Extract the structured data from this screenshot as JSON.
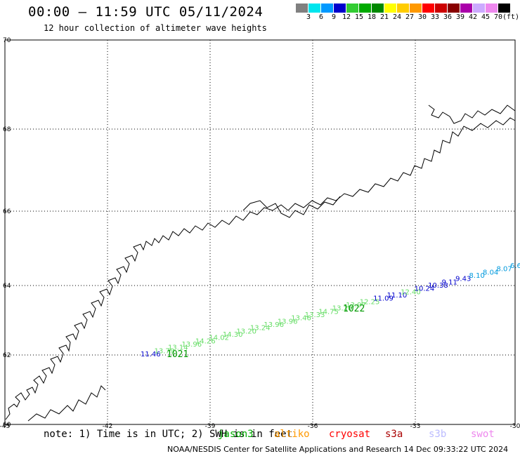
{
  "header": {
    "title": "00:00 – 11:59 UTC 05/11/2024",
    "subtitle": "12 hour collection of altimeter wave heights"
  },
  "colorbar": {
    "colors": [
      "#808080",
      "#00e5ee",
      "#0099ff",
      "#0000cc",
      "#33cc33",
      "#00aa00",
      "#008800",
      "#ffff00",
      "#ffcc00",
      "#ff9900",
      "#ff0000",
      "#cc0000",
      "#880000",
      "#aa00aa",
      "#ccaaff",
      "#ee88ee",
      "#000000"
    ],
    "labels": [
      "3",
      "6",
      "9",
      "12",
      "15",
      "18",
      "21",
      "24",
      "27",
      "30",
      "33",
      "36",
      "39",
      "42",
      "45",
      "70",
      "(ft)"
    ]
  },
  "map": {
    "lon_labels": [
      "-45",
      "-42",
      "-39",
      "-36",
      "-33",
      "-30"
    ],
    "lat_labels": [
      "70",
      "68",
      "66",
      "64",
      "62",
      "60"
    ],
    "track_colors": {
      "jason3": "#33cc33",
      "jason3_dark": "#009900",
      "blue": "#0000cc",
      "cyan": "#0099dd"
    },
    "track_values": [
      {
        "v": "11.46",
        "c": "#0000cc"
      },
      {
        "v": "13.79",
        "c": "#66dd66"
      },
      {
        "v": "13.14",
        "c": "#66dd66"
      },
      {
        "v": "13.96",
        "c": "#66dd66"
      },
      {
        "v": "14.26",
        "c": "#66dd66"
      },
      {
        "v": "14.02",
        "c": "#66dd66"
      },
      {
        "v": "14.30",
        "c": "#66dd66"
      },
      {
        "v": "13.20",
        "c": "#66dd66"
      },
      {
        "v": "13.24",
        "c": "#66dd66"
      },
      {
        "v": "13.96",
        "c": "#66dd66"
      },
      {
        "v": "13.96",
        "c": "#66dd66"
      },
      {
        "v": "13.46",
        "c": "#66dd66"
      },
      {
        "v": "13.33",
        "c": "#66dd66"
      },
      {
        "v": "14.75",
        "c": "#66dd66"
      },
      {
        "v": "13.20",
        "c": "#66dd66"
      },
      {
        "v": "13.97",
        "c": "#66dd66"
      },
      {
        "v": "12.25",
        "c": "#66dd66"
      },
      {
        "v": "11.09",
        "c": "#0000cc"
      },
      {
        "v": "11.10",
        "c": "#0000cc"
      },
      {
        "v": "12.40",
        "c": "#66dd66"
      },
      {
        "v": "10.24",
        "c": "#0000cc"
      },
      {
        "v": "10.38",
        "c": "#0000cc"
      },
      {
        "v": "9.11",
        "c": "#0000cc"
      },
      {
        "v": "9.43",
        "c": "#0000cc"
      },
      {
        "v": "8.10",
        "c": "#0099dd"
      },
      {
        "v": "8.04",
        "c": "#0099dd"
      },
      {
        "v": "8.07",
        "c": "#0099dd"
      },
      {
        "v": "6.6",
        "c": "#0099dd"
      }
    ],
    "pressure_labels": [
      "1021",
      "1022"
    ]
  },
  "footer": {
    "note": "note: 1) Time is in UTC; 2) SWH is in feet",
    "satellites": [
      {
        "name": "jason3",
        "color": "#00aa00"
      },
      {
        "name": "altiko",
        "color": "#ff9900"
      },
      {
        "name": "cryosat",
        "color": "#ff0000"
      },
      {
        "name": "s3a",
        "color": "#aa0000"
      },
      {
        "name": "s3b",
        "color": "#bbbbff"
      },
      {
        "name": "swot",
        "color": "#ee88ee"
      }
    ],
    "credits": "NOAA/NESDIS Center for Satellite Applications and Research    14 Dec 09:33:22 UTC 2024"
  }
}
